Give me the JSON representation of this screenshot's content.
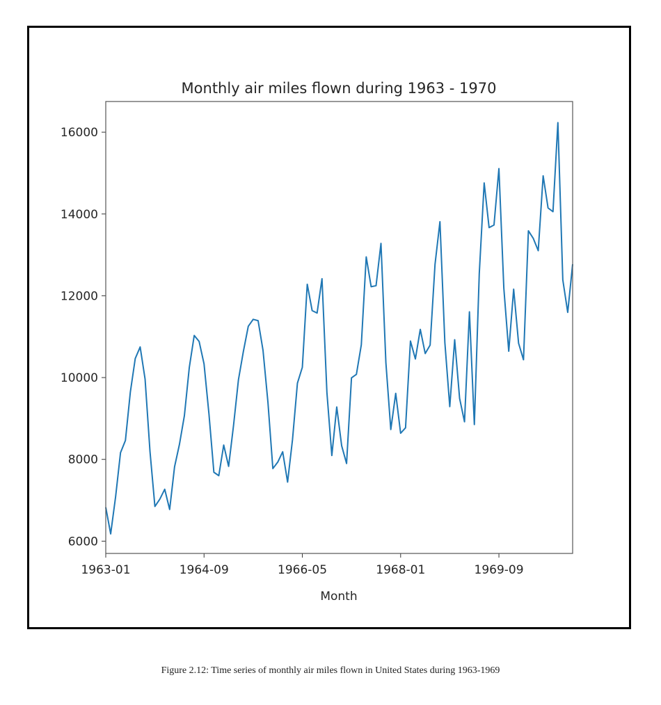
{
  "caption": "Figure 2.12: Time series of monthly air miles flown in United States during 1963-1969",
  "chart_data": {
    "type": "line",
    "title": "Monthly air miles flown during 1963 - 1970",
    "xlabel": "Month",
    "ylabel": "",
    "x_ticks": [
      "1963-01",
      "1964-09",
      "1966-05",
      "1968-01",
      "1969-09"
    ],
    "y_ticks": [
      6000,
      8000,
      10000,
      12000,
      14000,
      16000
    ],
    "ylim": [
      5700,
      16750
    ],
    "grid": false,
    "line_color": "#1f77b4",
    "series": [
      {
        "start": "1963-01",
        "values": [
          6827,
          6178,
          7084,
          8162,
          8462,
          9644,
          10466,
          10748,
          9963,
          8194,
          6848,
          7027,
          7269,
          6775,
          7819,
          8371,
          9069,
          10248,
          11030,
          10882,
          10333,
          9109,
          7685,
          7602,
          8350,
          7829,
          8829,
          9948,
          10638,
          11253,
          11424,
          11391,
          10665,
          9396,
          7775,
          7933,
          8186,
          7444,
          8484,
          9864,
          10252,
          12282,
          11637,
          11577,
          12417,
          9637,
          8094,
          9280,
          8334,
          7899,
          9994,
          10078,
          10801,
          12950,
          12222,
          12246,
          13281,
          10366,
          8730,
          9614,
          8639,
          8772,
          10894,
          10455,
          11179,
          10588,
          10794,
          12770,
          13812,
          10857,
          9290,
          10925,
          9491,
          8919,
          11607,
          8852,
          12537,
          14759,
          13667,
          13731,
          15110,
          12185,
          10645,
          12161,
          10840,
          10436,
          13589,
          13402,
          13103,
          14933,
          14147,
          14057,
          16234,
          12389,
          11594,
          12772
        ]
      }
    ]
  }
}
